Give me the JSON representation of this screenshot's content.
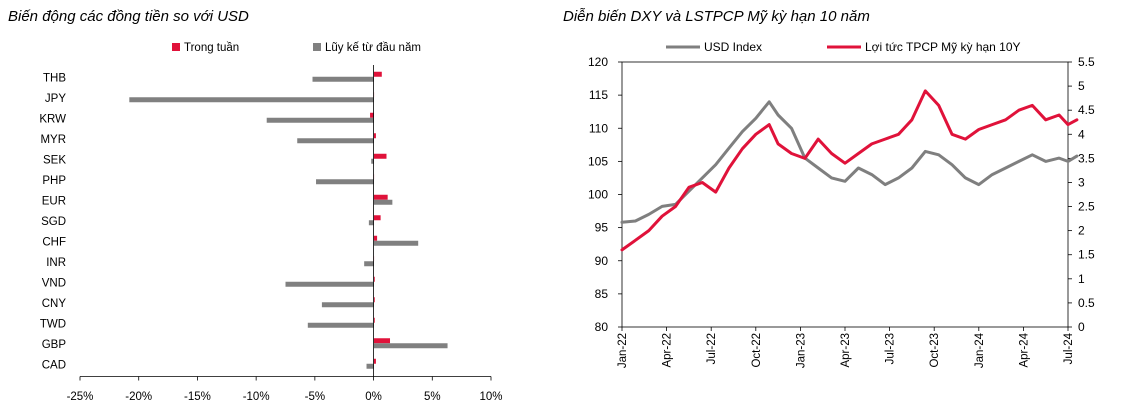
{
  "left_title": "Biến động các đồng tiền so với USD",
  "right_title": "Diễn biến DXY và LSTPCP Mỹ kỳ hạn 10 năm",
  "chart_data": [
    {
      "type": "bar",
      "orientation": "horizontal",
      "title": "Biến động các đồng tiền so với USD",
      "categories": [
        "THB",
        "JPY",
        "KRW",
        "MYR",
        "SEK",
        "PHP",
        "EUR",
        "SGD",
        "CHF",
        "INR",
        "VND",
        "CNY",
        "TWD",
        "GBP",
        "CAD"
      ],
      "series": [
        {
          "name": "Trong tuần",
          "color": "#e0123a",
          "values": [
            0.7,
            0.0,
            -0.3,
            0.2,
            1.1,
            0.0,
            1.2,
            0.6,
            0.3,
            0.0,
            0.1,
            0.1,
            0.1,
            1.4,
            0.2
          ]
        },
        {
          "name": "Lũy kế từ đầu năm",
          "color": "#808080",
          "values": [
            -5.2,
            -20.8,
            -9.1,
            -6.5,
            -0.2,
            -4.9,
            1.6,
            -0.4,
            3.8,
            -0.8,
            -7.5,
            -4.4,
            -5.6,
            6.3,
            -0.6
          ]
        }
      ],
      "xlim": [
        -25,
        10
      ],
      "x_ticks": [
        "-25%",
        "-20%",
        "-15%",
        "-10%",
        "-5%",
        "0%",
        "5%",
        "10%"
      ],
      "legend_position": "top"
    },
    {
      "type": "line",
      "title": "Diễn biến DXY và LSTPCP Mỹ kỳ hạn 10 năm",
      "x_ticks": [
        "Jan-22",
        "Apr-22",
        "Jul-22",
        "Oct-22",
        "Jan-23",
        "Apr-23",
        "Jul-23",
        "Oct-23",
        "Jan-24",
        "Apr-24",
        "Jul-24"
      ],
      "ylim_left": [
        80,
        120
      ],
      "y_ticks_left": [
        "80",
        "85",
        "90",
        "95",
        "100",
        "105",
        "110",
        "115",
        "120"
      ],
      "ylim_right": [
        0,
        5.5
      ],
      "y_ticks_right": [
        "0",
        "0.5",
        "1",
        "1.5",
        "2",
        "2.5",
        "3",
        "3.5",
        "4",
        "4.5",
        "5",
        "5.5"
      ],
      "legend_position": "top",
      "series": [
        {
          "name": "USD Index",
          "axis": "left",
          "color": "#7f7f7f",
          "x": [
            0,
            0.3,
            0.6,
            0.9,
            1.2,
            1.5,
            1.8,
            2.1,
            2.4,
            2.7,
            3.0,
            3.3,
            3.5,
            3.8,
            4.1,
            4.4,
            4.7,
            5.0,
            5.3,
            5.6,
            5.9,
            6.2,
            6.5,
            6.8,
            7.1,
            7.4,
            7.7,
            8.0,
            8.3,
            8.6,
            8.9,
            9.2,
            9.5,
            9.8,
            10.0,
            10.2
          ],
          "values": [
            95.8,
            96.0,
            97.0,
            98.2,
            98.5,
            100.5,
            102.5,
            104.5,
            107.0,
            109.5,
            111.5,
            114.0,
            112.0,
            110.0,
            105.5,
            104.0,
            102.5,
            102.0,
            104.0,
            103.0,
            101.5,
            102.5,
            104.0,
            106.5,
            106.0,
            104.5,
            102.5,
            101.5,
            103.0,
            104.0,
            105.0,
            106.0,
            105.0,
            105.5,
            105.0,
            105.8
          ]
        },
        {
          "name": "Lợi tức TPCP Mỹ kỳ hạn 10Y",
          "axis": "right",
          "color": "#e0123a",
          "x": [
            0,
            0.3,
            0.6,
            0.9,
            1.2,
            1.5,
            1.8,
            2.1,
            2.4,
            2.7,
            3.0,
            3.3,
            3.5,
            3.8,
            4.1,
            4.4,
            4.7,
            5.0,
            5.3,
            5.6,
            5.9,
            6.2,
            6.5,
            6.8,
            7.1,
            7.4,
            7.7,
            8.0,
            8.3,
            8.6,
            8.9,
            9.2,
            9.5,
            9.8,
            10.0,
            10.2
          ],
          "values": [
            1.6,
            1.8,
            2.0,
            2.3,
            2.5,
            2.9,
            3.0,
            2.8,
            3.3,
            3.7,
            4.0,
            4.2,
            3.8,
            3.6,
            3.5,
            3.9,
            3.6,
            3.4,
            3.6,
            3.8,
            3.9,
            4.0,
            4.3,
            4.9,
            4.6,
            4.0,
            3.9,
            4.1,
            4.2,
            4.3,
            4.5,
            4.6,
            4.3,
            4.4,
            4.2,
            4.3
          ]
        }
      ]
    }
  ]
}
